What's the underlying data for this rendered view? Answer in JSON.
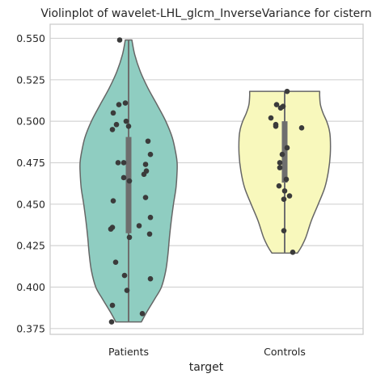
{
  "chart_data": {
    "type": "violin",
    "title": "Violinplot of wavelet-LHL_glcm_InverseVariance for cistern",
    "xlabel": "target",
    "ylabel": "",
    "categories": [
      "Patients",
      "Controls"
    ],
    "ylim": [
      0.3715,
      0.5585
    ],
    "yticks": [
      0.375,
      0.4,
      0.425,
      0.45,
      0.475,
      0.5,
      0.525,
      0.55
    ],
    "ytick_labels": [
      "0.375",
      "0.400",
      "0.425",
      "0.450",
      "0.475",
      "0.500",
      "0.525",
      "0.550"
    ],
    "grid": true,
    "colors": {
      "Patients": "#8fcdc1",
      "Controls": "#f8f8bc",
      "points": "#3b3b3b",
      "outline": "#666666",
      "box": "#6e6e6e",
      "grid": "#d4d4d4",
      "spine": "#cccccc"
    },
    "violins": [
      {
        "name": "Patients",
        "range": [
          0.379,
          0.549
        ],
        "quartiles": [
          0.4325,
          0.4905
        ],
        "density": [
          [
            0.379,
            0.35
          ],
          [
            0.385,
            0.5
          ],
          [
            0.393,
            0.72
          ],
          [
            0.4,
            0.9
          ],
          [
            0.41,
            1.02
          ],
          [
            0.42,
            1.08
          ],
          [
            0.43,
            1.12
          ],
          [
            0.44,
            1.17
          ],
          [
            0.45,
            1.23
          ],
          [
            0.46,
            1.3
          ],
          [
            0.47,
            1.33
          ],
          [
            0.475,
            1.33
          ],
          [
            0.48,
            1.3
          ],
          [
            0.49,
            1.2
          ],
          [
            0.5,
            1.02
          ],
          [
            0.51,
            0.78
          ],
          [
            0.52,
            0.53
          ],
          [
            0.53,
            0.32
          ],
          [
            0.54,
            0.17
          ],
          [
            0.549,
            0.09
          ]
        ],
        "points": [
          [
            0.549,
            -0.11
          ],
          [
            0.511,
            -0.04
          ],
          [
            0.51,
            -0.12
          ],
          [
            0.505,
            -0.19
          ],
          [
            0.5,
            -0.03
          ],
          [
            0.498,
            -0.15
          ],
          [
            0.497,
            0.0
          ],
          [
            0.495,
            -0.2
          ],
          [
            0.488,
            0.24
          ],
          [
            0.48,
            0.27
          ],
          [
            0.475,
            -0.13
          ],
          [
            0.475,
            -0.06
          ],
          [
            0.474,
            0.21
          ],
          [
            0.47,
            0.22
          ],
          [
            0.468,
            0.19
          ],
          [
            0.466,
            -0.06
          ],
          [
            0.464,
            0.01
          ],
          [
            0.454,
            0.21
          ],
          [
            0.452,
            -0.19
          ],
          [
            0.442,
            0.27
          ],
          [
            0.437,
            0.13
          ],
          [
            0.436,
            -0.2
          ],
          [
            0.435,
            -0.22
          ],
          [
            0.432,
            0.26
          ],
          [
            0.43,
            0.01
          ],
          [
            0.415,
            -0.16
          ],
          [
            0.407,
            -0.05
          ],
          [
            0.405,
            0.27
          ],
          [
            0.398,
            -0.02
          ],
          [
            0.389,
            -0.2
          ],
          [
            0.384,
            0.17
          ],
          [
            0.379,
            -0.21
          ]
        ]
      },
      {
        "name": "Controls",
        "range": [
          0.4205,
          0.518
        ],
        "quartiles": [
          0.463,
          0.5
        ],
        "density": [
          [
            0.4205,
            0.35
          ],
          [
            0.424,
            0.45
          ],
          [
            0.43,
            0.58
          ],
          [
            0.44,
            0.73
          ],
          [
            0.45,
            0.92
          ],
          [
            0.46,
            1.1
          ],
          [
            0.47,
            1.2
          ],
          [
            0.48,
            1.25
          ],
          [
            0.49,
            1.25
          ],
          [
            0.495,
            1.22
          ],
          [
            0.5,
            1.15
          ],
          [
            0.505,
            1.05
          ],
          [
            0.51,
            0.98
          ],
          [
            0.515,
            0.96
          ],
          [
            0.518,
            0.96
          ]
        ],
        "points": [
          [
            0.518,
            0.03
          ],
          [
            0.51,
            -0.1
          ],
          [
            0.509,
            -0.02
          ],
          [
            0.508,
            -0.05
          ],
          [
            0.502,
            -0.17
          ],
          [
            0.498,
            -0.11
          ],
          [
            0.497,
            -0.11
          ],
          [
            0.496,
            0.21
          ],
          [
            0.484,
            0.03
          ],
          [
            0.48,
            -0.03
          ],
          [
            0.475,
            -0.06
          ],
          [
            0.472,
            -0.06
          ],
          [
            0.465,
            0.02
          ],
          [
            0.461,
            -0.07
          ],
          [
            0.458,
            0.0
          ],
          [
            0.455,
            0.06
          ],
          [
            0.453,
            -0.01
          ],
          [
            0.434,
            -0.01
          ],
          [
            0.421,
            0.1
          ]
        ]
      }
    ]
  }
}
